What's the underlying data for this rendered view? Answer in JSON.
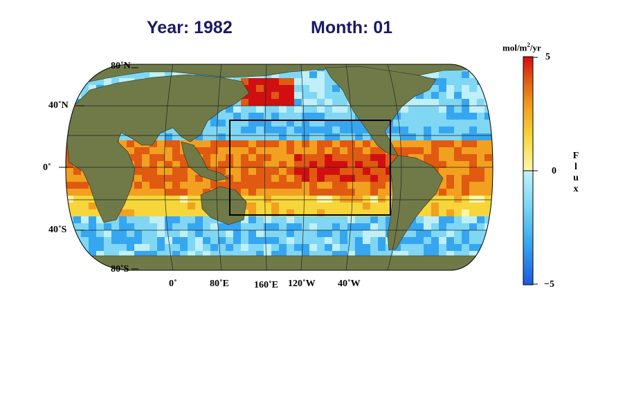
{
  "header": {
    "year_text": "Year: 1982",
    "month_text": "Month: 01",
    "color": "#1a1a66"
  },
  "map": {
    "projection": "Robinson",
    "variable": "CO2 air-sea flux",
    "lat_labels": [
      "80˚N",
      "40˚N",
      "0˚",
      "40˚S",
      "80˚S"
    ],
    "lon_labels": [
      "0˚",
      "80˚E",
      "160˚E",
      "120˚W",
      "40˚W"
    ],
    "highlight_box": {
      "lon_min": 120,
      "lon_max": 290,
      "lat_min": -30,
      "lat_max": 30,
      "color": "#000000"
    },
    "land_color": "#6f7a48",
    "ocean_missing_color": "#ffffff"
  },
  "colorbar": {
    "unit_prefix": "mol/m",
    "unit_power": "2",
    "unit_suffix": "/yr",
    "max_label": "5",
    "mid_label": "0",
    "min_label": "−5",
    "min": -5,
    "max": 5,
    "title_letters": [
      "F",
      "l",
      "u",
      "x"
    ],
    "colors": [
      "#1f58e0",
      "#36a6f0",
      "#7fd7f4",
      "#bff0fa",
      "#fff6a8",
      "#f6d63a",
      "#f2a020",
      "#e05a12",
      "#d01010"
    ]
  }
}
